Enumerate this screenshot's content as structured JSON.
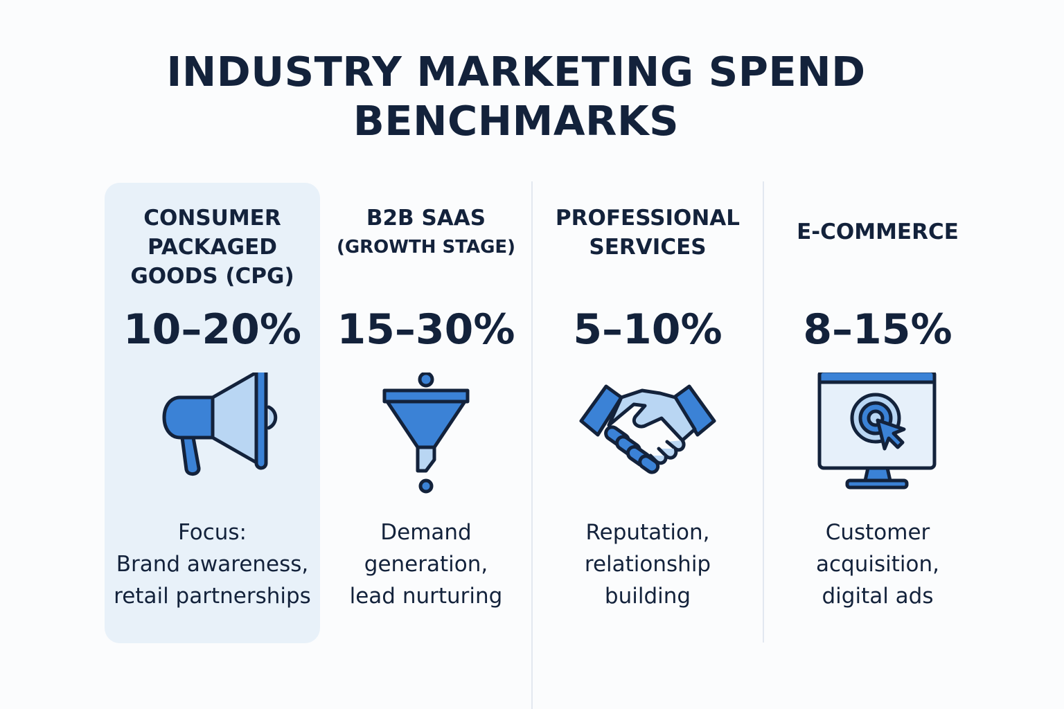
{
  "title": {
    "line1": "INDUSTRY MARKETING SPEND",
    "line2": "BENCHMARKS"
  },
  "colors": {
    "accent": "#3b82d6",
    "accent_light": "#b9d6f3",
    "outline": "#13223b",
    "highlight_background": "#e8f1f9"
  },
  "columns": [
    {
      "name_lines": [
        "CONSUMER",
        "PACKAGED",
        "GOODS (CPG)"
      ],
      "percent": "10–20%",
      "icon": "megaphone-icon",
      "description_lines": [
        "Focus:",
        "Brand awareness,",
        "retail partnerships"
      ],
      "highlighted": true
    },
    {
      "name_lines": [
        "B2B SAAS",
        "(GROWTH STAGE)"
      ],
      "percent": "15–30%",
      "icon": "funnel-icon",
      "description_lines": [
        "Demand",
        "generation,",
        "lead nurturing"
      ],
      "highlighted": false
    },
    {
      "name_lines": [
        "PROFESSIONAL",
        "SERVICES"
      ],
      "percent": "5–10%",
      "icon": "handshake-icon",
      "description_lines": [
        "Reputation,",
        "relationship",
        "building"
      ],
      "highlighted": false
    },
    {
      "name_lines": [
        "E-COMMERCE"
      ],
      "percent": "8–15%",
      "icon": "monitor-target-cursor-icon",
      "description_lines": [
        "Customer",
        "acquisition,",
        "digital ads"
      ],
      "highlighted": false
    }
  ]
}
